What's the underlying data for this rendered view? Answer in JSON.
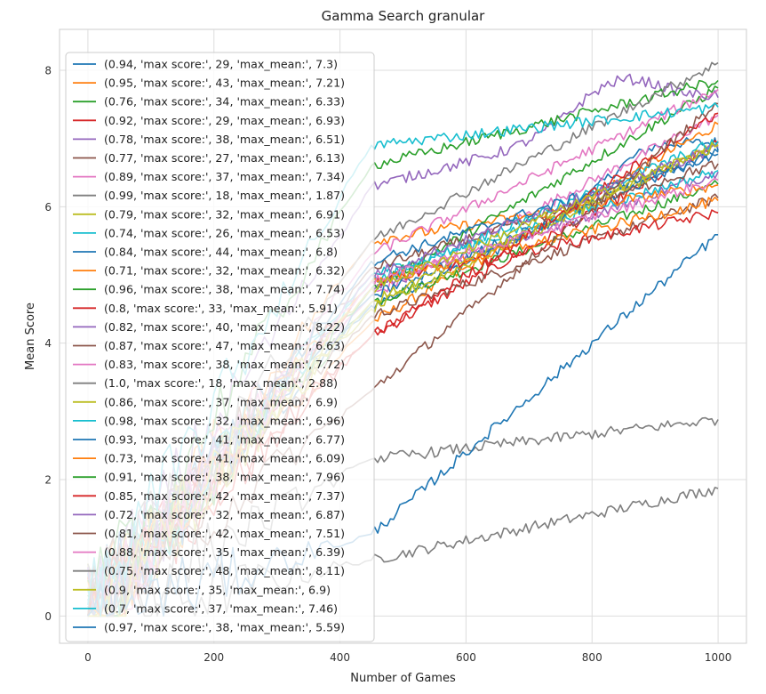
{
  "chart_data": {
    "type": "line",
    "title": "Gamma Search granular",
    "xlabel": "Number of Games",
    "ylabel": "Mean Score",
    "xlim": [
      -45,
      1045
    ],
    "ylim": [
      -0.4,
      8.6
    ],
    "xticks": [
      0,
      200,
      400,
      600,
      800,
      1000
    ],
    "yticks": [
      0,
      2,
      4,
      6,
      8
    ],
    "grid": true,
    "legend_position": "upper-left",
    "series": [
      {
        "name": "(0.94, 'max score:', 29, 'max_mean:', 7.3)",
        "color": "#1f77b4",
        "final": 6.82,
        "start_at_450": 4.55,
        "max": 7.3
      },
      {
        "name": "(0.95, 'max score:', 43, 'max_mean:', 7.21)",
        "color": "#ff7f0e",
        "final": 7.21,
        "start_at_450": 4.3,
        "max": 7.21
      },
      {
        "name": "(0.76, 'max score:', 34, 'max_mean:', 6.33)",
        "color": "#2ca02c",
        "final": 6.33,
        "start_at_450": 4.6,
        "max": 6.33
      },
      {
        "name": "(0.92, 'max score:', 29, 'max_mean:', 6.93)",
        "color": "#d62728",
        "final": 6.93,
        "start_at_450": 4.1,
        "max": 6.93
      },
      {
        "name": "(0.78, 'max score:', 38, 'max_mean:', 6.51)",
        "color": "#9467bd",
        "final": 6.51,
        "start_at_450": 4.8,
        "max": 6.51
      },
      {
        "name": "(0.77, 'max score:', 27, 'max_mean:', 6.13)",
        "color": "#8c564b",
        "final": 6.13,
        "start_at_450": 4.4,
        "max": 6.13
      },
      {
        "name": "(0.89, 'max score:', 37, 'max_mean:', 7.34)",
        "color": "#e377c2",
        "final": 7.34,
        "start_at_450": 4.7,
        "max": 7.34
      },
      {
        "name": "(0.99, 'max score:', 18, 'max_mean:', 1.87)",
        "color": "#7f7f7f",
        "final": 1.87,
        "start_at_450": 0.82,
        "max": 1.87
      },
      {
        "name": "(0.79, 'max score:', 32, 'max_mean:', 6.91)",
        "color": "#bcbd22",
        "final": 6.91,
        "start_at_450": 4.5,
        "max": 6.91
      },
      {
        "name": "(0.74, 'max score:', 26, 'max_mean:', 6.53)",
        "color": "#17becf",
        "final": 6.53,
        "start_at_450": 5.0,
        "max": 6.53
      },
      {
        "name": "(0.84, 'max score:', 44, 'max_mean:', 6.8)",
        "color": "#1f77b4",
        "final": 6.8,
        "start_at_450": 4.7,
        "max": 6.8
      },
      {
        "name": "(0.71, 'max score:', 32, 'max_mean:', 6.32)",
        "color": "#ff7f0e",
        "final": 6.32,
        "start_at_450": 5.5,
        "max": 6.32
      },
      {
        "name": "(0.96, 'max score:', 38, 'max_mean:', 7.74)",
        "color": "#2ca02c",
        "final": 7.74,
        "start_at_450": 4.8,
        "max": 7.74
      },
      {
        "name": "(0.8, 'max score:', 33, 'max_mean:', 5.91)",
        "color": "#d62728",
        "final": 5.91,
        "start_at_450": 4.9,
        "max": 5.91
      },
      {
        "name": "(0.82, 'max score:', 40, 'max_mean:', 8.22)",
        "color": "#9467bd",
        "final": 7.6,
        "start_at_450": 6.3,
        "max": 8.22
      },
      {
        "name": "(0.87, 'max score:', 47, 'max_mean:', 6.63)",
        "color": "#8c564b",
        "final": 6.63,
        "start_at_450": 5.1,
        "max": 6.63
      },
      {
        "name": "(0.83, 'max score:', 38, 'max_mean:', 7.72)",
        "color": "#e377c2",
        "final": 7.72,
        "start_at_450": 5.3,
        "max": 7.72
      },
      {
        "name": "(1.0, 'max score:', 18, 'max_mean:', 2.88)",
        "color": "#7f7f7f",
        "final": 2.88,
        "start_at_450": 2.3,
        "max": 2.88
      },
      {
        "name": "(0.86, 'max score:', 37, 'max_mean:', 6.9)",
        "color": "#bcbd22",
        "final": 6.9,
        "start_at_450": 4.6,
        "max": 6.9
      },
      {
        "name": "(0.98, 'max score:', 32, 'max_mean:', 6.96)",
        "color": "#17becf",
        "final": 6.96,
        "start_at_450": 4.9,
        "max": 6.96
      },
      {
        "name": "(0.93, 'max score:', 41, 'max_mean:', 6.77)",
        "color": "#1f77b4",
        "final": 6.77,
        "start_at_450": 5.2,
        "max": 6.77
      },
      {
        "name": "(0.73, 'max score:', 41, 'max_mean:', 6.09)",
        "color": "#ff7f0e",
        "final": 6.09,
        "start_at_450": 4.9,
        "max": 6.09
      },
      {
        "name": "(0.91, 'max score:', 38, 'max_mean:', 7.96)",
        "color": "#2ca02c",
        "final": 7.85,
        "start_at_450": 6.6,
        "max": 7.96
      },
      {
        "name": "(0.85, 'max score:', 42, 'max_mean:', 7.37)",
        "color": "#d62728",
        "final": 7.37,
        "start_at_450": 4.1,
        "max": 7.37
      },
      {
        "name": "(0.72, 'max score:', 32, 'max_mean:', 6.87)",
        "color": "#9467bd",
        "final": 6.87,
        "start_at_450": 5.0,
        "max": 6.87
      },
      {
        "name": "(0.81, 'max score:', 42, 'max_mean:', 7.51)",
        "color": "#8c564b",
        "final": 7.51,
        "start_at_450": 3.3,
        "max": 7.51
      },
      {
        "name": "(0.88, 'max score:', 35, 'max_mean:', 6.39)",
        "color": "#e377c2",
        "final": 6.39,
        "start_at_450": 4.9,
        "max": 6.39
      },
      {
        "name": "(0.75, 'max score:', 48, 'max_mean:', 8.11)",
        "color": "#7f7f7f",
        "final": 8.11,
        "start_at_450": 5.5,
        "max": 8.11
      },
      {
        "name": "(0.9, 'max score:', 35, 'max_mean:', 6.9)",
        "color": "#bcbd22",
        "final": 6.9,
        "start_at_450": 4.8,
        "max": 6.9
      },
      {
        "name": "(0.7, 'max score:', 37, 'max_mean:', 7.46)",
        "color": "#17becf",
        "final": 7.46,
        "start_at_450": 6.9,
        "max": 7.46
      },
      {
        "name": "(0.97, 'max score:', 38, 'max_mean:', 5.59)",
        "color": "#1f77b4",
        "final": 5.59,
        "start_at_450": 1.2,
        "max": 5.59
      }
    ]
  }
}
